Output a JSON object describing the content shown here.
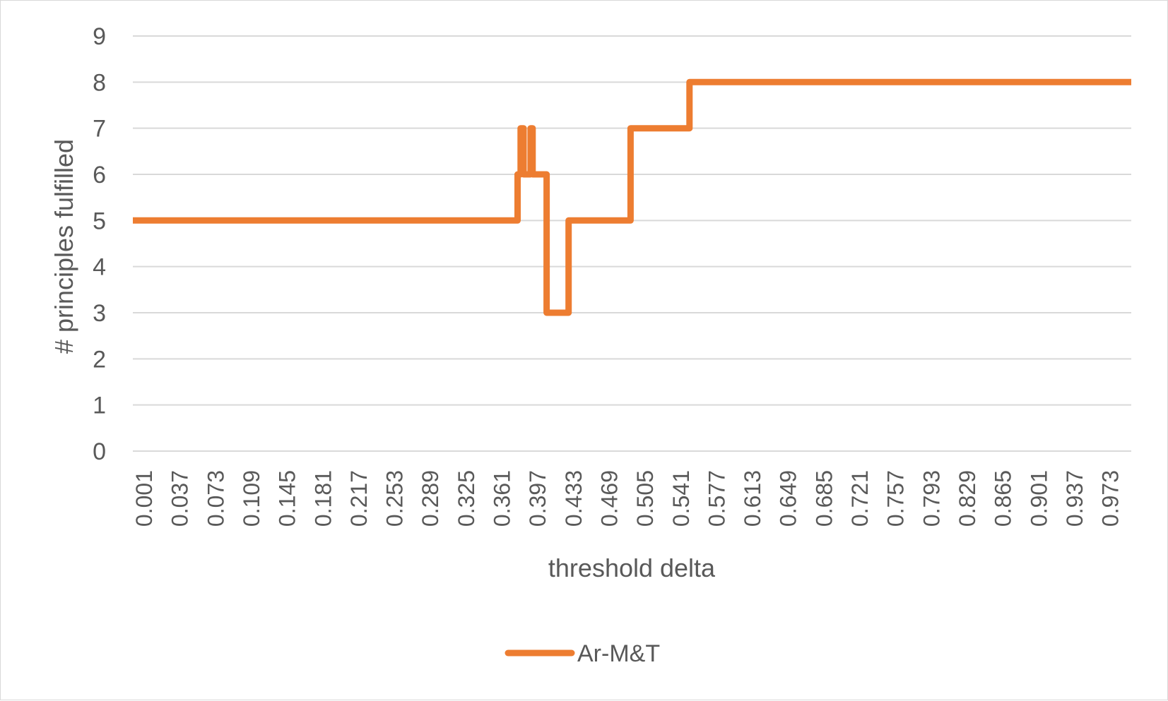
{
  "chart_data": {
    "type": "line",
    "title": "",
    "xlabel": "threshold delta",
    "ylabel": "# principles fulfilled",
    "ylim": [
      0,
      9
    ],
    "yticks": [
      0,
      1,
      2,
      3,
      4,
      5,
      6,
      7,
      8,
      9
    ],
    "xlim": [
      0.001,
      1.0
    ],
    "x_tick_labels": [
      "0.001",
      "0.037",
      "0.073",
      "0.109",
      "0.145",
      "0.181",
      "0.217",
      "0.253",
      "0.289",
      "0.325",
      "0.361",
      "0.397",
      "0.433",
      "0.469",
      "0.505",
      "0.541",
      "0.577",
      "0.613",
      "0.649",
      "0.685",
      "0.721",
      "0.757",
      "0.793",
      "0.829",
      "0.865",
      "0.901",
      "0.937",
      "0.973"
    ],
    "grid": "horizontal",
    "legend_position": "bottom",
    "series": [
      {
        "name": "Ar-M&T",
        "color": "#ed7d31",
        "step": true,
        "points": [
          [
            0.001,
            5
          ],
          [
            0.386,
            5
          ],
          [
            0.386,
            6
          ],
          [
            0.389,
            6
          ],
          [
            0.389,
            7
          ],
          [
            0.392,
            7
          ],
          [
            0.392,
            6
          ],
          [
            0.399,
            6
          ],
          [
            0.399,
            7
          ],
          [
            0.401,
            7
          ],
          [
            0.401,
            6
          ],
          [
            0.415,
            6
          ],
          [
            0.415,
            3
          ],
          [
            0.437,
            3
          ],
          [
            0.437,
            5
          ],
          [
            0.499,
            5
          ],
          [
            0.499,
            7
          ],
          [
            0.558,
            7
          ],
          [
            0.558,
            8
          ],
          [
            1.0,
            8
          ]
        ]
      }
    ]
  }
}
